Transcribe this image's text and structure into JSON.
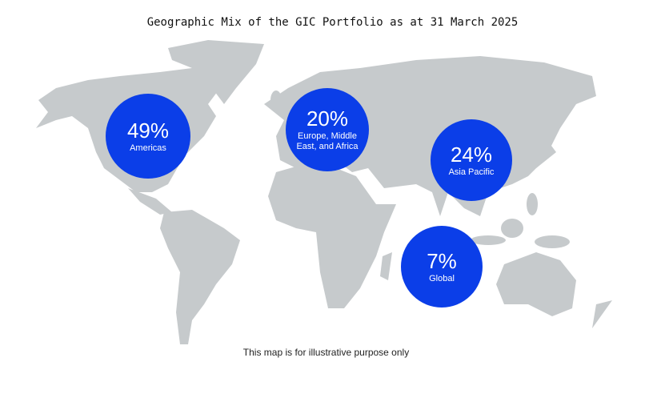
{
  "title": "Geographic Mix of the GIC Portfolio as at 31 March 2025",
  "regions": [
    {
      "share": "49%",
      "name": "Americas"
    },
    {
      "share": "20%",
      "name": "Europe, Middle East, and Africa"
    },
    {
      "share": "24%",
      "name": "Asia Pacific"
    },
    {
      "share": "7%",
      "name": "Global"
    }
  ],
  "note": "This map is for illustrative purpose only"
}
